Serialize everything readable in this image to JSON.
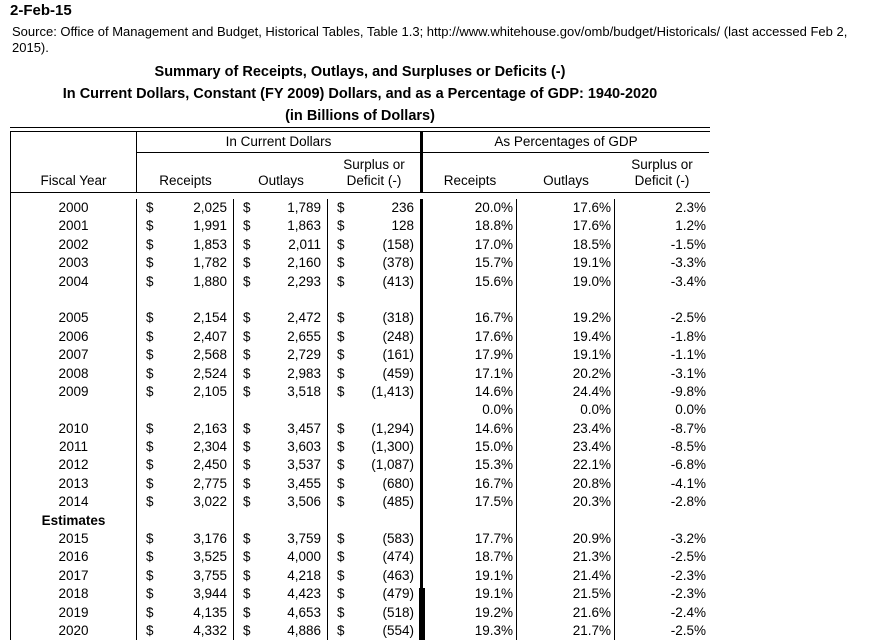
{
  "page": {
    "date_label": "2-Feb-15",
    "source_line": "Source: Office of Management and Budget, Historical Tables, Table 1.3; http://www.whitehouse.gov/omb/budget/Historicals/ (last accessed Feb 2, 2015).",
    "title_line1": "Summary of Receipts, Outlays, and Surpluses or Deficits (-)",
    "title_line2": "In Current Dollars, Constant (FY 2009) Dollars, and as a Percentage of GDP: 1940-2020",
    "title_line3": "(in Billions of Dollars)"
  },
  "colors": {
    "text": "#000000",
    "background": "#ffffff",
    "rule": "#000000"
  },
  "table": {
    "group_headers": {
      "current_dollars": "In Current Dollars",
      "pct_gdp": "As Percentages of GDP"
    },
    "col_headers": {
      "fiscal_year": "Fiscal Year",
      "receipts": "Receipts",
      "outlays": "Outlays",
      "surplus_line1": "Surplus or",
      "surplus_line2": "Deficit (-)"
    },
    "rows": [
      {
        "year": "2000",
        "sym": "$",
        "receipts": "2,025",
        "outlays": "1,789",
        "surplus": "236",
        "receipts_pct": "20.0%",
        "outlays_pct": "17.6%",
        "surplus_pct": "2.3%"
      },
      {
        "year": "2001",
        "sym": "$",
        "receipts": "1,991",
        "outlays": "1,863",
        "surplus": "128",
        "receipts_pct": "18.8%",
        "outlays_pct": "17.6%",
        "surplus_pct": "1.2%"
      },
      {
        "year": "2002",
        "sym": "$",
        "receipts": "1,853",
        "outlays": "2,011",
        "surplus": "(158)",
        "receipts_pct": "17.0%",
        "outlays_pct": "18.5%",
        "surplus_pct": "-1.5%"
      },
      {
        "year": "2003",
        "sym": "$",
        "receipts": "1,782",
        "outlays": "2,160",
        "surplus": "(378)",
        "receipts_pct": "15.7%",
        "outlays_pct": "19.1%",
        "surplus_pct": "-3.3%"
      },
      {
        "year": "2004",
        "sym": "$",
        "receipts": "1,880",
        "outlays": "2,293",
        "surplus": "(413)",
        "receipts_pct": "15.6%",
        "outlays_pct": "19.0%",
        "surplus_pct": "-3.4%"
      },
      {
        "year": "",
        "sym": "",
        "receipts": "",
        "outlays": "",
        "surplus": "",
        "receipts_pct": "",
        "outlays_pct": "",
        "surplus_pct": ""
      },
      {
        "year": "2005",
        "sym": "$",
        "receipts": "2,154",
        "outlays": "2,472",
        "surplus": "(318)",
        "receipts_pct": "16.7%",
        "outlays_pct": "19.2%",
        "surplus_pct": "-2.5%"
      },
      {
        "year": "2006",
        "sym": "$",
        "receipts": "2,407",
        "outlays": "2,655",
        "surplus": "(248)",
        "receipts_pct": "17.6%",
        "outlays_pct": "19.4%",
        "surplus_pct": "-1.8%"
      },
      {
        "year": "2007",
        "sym": "$",
        "receipts": "2,568",
        "outlays": "2,729",
        "surplus": "(161)",
        "receipts_pct": "17.9%",
        "outlays_pct": "19.1%",
        "surplus_pct": "-1.1%"
      },
      {
        "year": "2008",
        "sym": "$",
        "receipts": "2,524",
        "outlays": "2,983",
        "surplus": "(459)",
        "receipts_pct": "17.1%",
        "outlays_pct": "20.2%",
        "surplus_pct": "-3.1%"
      },
      {
        "year": "2009",
        "sym": "$",
        "receipts": "2,105",
        "outlays": "3,518",
        "surplus": "(1,413)",
        "receipts_pct": "14.6%",
        "outlays_pct": "24.4%",
        "surplus_pct": "-9.8%"
      },
      {
        "year": "",
        "sym": "",
        "receipts": "",
        "outlays": "",
        "surplus": "",
        "receipts_pct": "0.0%",
        "outlays_pct": "0.0%",
        "surplus_pct": "0.0%"
      },
      {
        "year": "2010",
        "sym": "$",
        "receipts": "2,163",
        "outlays": "3,457",
        "surplus": "(1,294)",
        "receipts_pct": "14.6%",
        "outlays_pct": "23.4%",
        "surplus_pct": "-8.7%"
      },
      {
        "year": "2011",
        "sym": "$",
        "receipts": "2,304",
        "outlays": "3,603",
        "surplus": "(1,300)",
        "receipts_pct": "15.0%",
        "outlays_pct": "23.4%",
        "surplus_pct": "-8.5%"
      },
      {
        "year": "2012",
        "sym": "$",
        "receipts": "2,450",
        "outlays": "3,537",
        "surplus": "(1,087)",
        "receipts_pct": "15.3%",
        "outlays_pct": "22.1%",
        "surplus_pct": "-6.8%"
      },
      {
        "year": "2013",
        "sym": "$",
        "receipts": "2,775",
        "outlays": "3,455",
        "surplus": "(680)",
        "receipts_pct": "16.7%",
        "outlays_pct": "20.8%",
        "surplus_pct": "-4.1%"
      },
      {
        "year": "2014",
        "sym": "$",
        "receipts": "3,022",
        "outlays": "3,506",
        "surplus": "(485)",
        "receipts_pct": "17.5%",
        "outlays_pct": "20.3%",
        "surplus_pct": "-2.8%"
      },
      {
        "year": "Estimates",
        "sym": "",
        "receipts": "",
        "outlays": "",
        "surplus": "",
        "receipts_pct": "",
        "outlays_pct": "",
        "surplus_pct": ""
      },
      {
        "year": "2015",
        "sym": "$",
        "receipts": "3,176",
        "outlays": "3,759",
        "surplus": "(583)",
        "receipts_pct": "17.7%",
        "outlays_pct": "20.9%",
        "surplus_pct": "-3.2%"
      },
      {
        "year": "2016",
        "sym": "$",
        "receipts": "3,525",
        "outlays": "4,000",
        "surplus": "(474)",
        "receipts_pct": "18.7%",
        "outlays_pct": "21.3%",
        "surplus_pct": "-2.5%"
      },
      {
        "year": "2017",
        "sym": "$",
        "receipts": "3,755",
        "outlays": "4,218",
        "surplus": "(463)",
        "receipts_pct": "19.1%",
        "outlays_pct": "21.4%",
        "surplus_pct": "-2.3%"
      },
      {
        "year": "2018",
        "sym": "$",
        "receipts": "3,944",
        "outlays": "4,423",
        "surplus": "(479)",
        "receipts_pct": "19.1%",
        "outlays_pct": "21.5%",
        "surplus_pct": "-2.3%"
      },
      {
        "year": "2019",
        "sym": "$",
        "receipts": "4,135",
        "outlays": "4,653",
        "surplus": "(518)",
        "receipts_pct": "19.2%",
        "outlays_pct": "21.6%",
        "surplus_pct": "-2.4%"
      },
      {
        "year": "2020",
        "sym": "$",
        "receipts": "4,332",
        "outlays": "4,886",
        "surplus": "(554)",
        "receipts_pct": "19.3%",
        "outlays_pct": "21.7%",
        "surplus_pct": "-2.5%"
      }
    ]
  }
}
